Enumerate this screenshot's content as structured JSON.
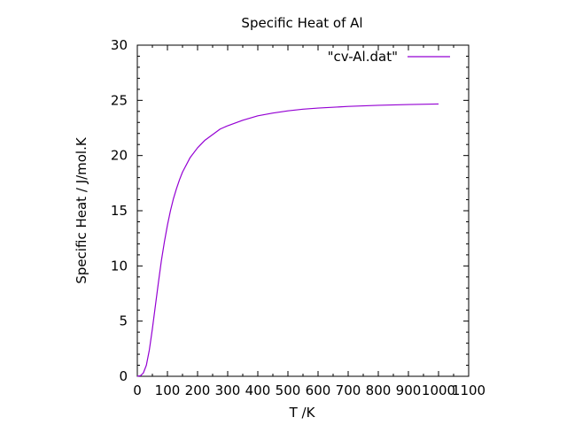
{
  "chart_data": {
    "type": "line",
    "title": "Specific Heat of Al",
    "xlabel": "T /K",
    "ylabel": "Specific Heat / J/mol.K",
    "xlim": [
      0,
      1100
    ],
    "ylim": [
      0,
      30
    ],
    "xticks": [
      "0",
      "100",
      "200",
      "300",
      "400",
      "500",
      "600",
      "700",
      "800",
      "900",
      "1000",
      "1100"
    ],
    "yticks": [
      "0",
      "5",
      "10",
      "15",
      "20",
      "25",
      "30"
    ],
    "legend_position": "top-right",
    "grid": false,
    "series": [
      {
        "name": "\"cv-Al.dat\"",
        "color": "#9400d3",
        "points": [
          [
            0,
            0.0
          ],
          [
            10,
            0.05
          ],
          [
            20,
            0.3
          ],
          [
            30,
            1.0
          ],
          [
            40,
            2.4
          ],
          [
            50,
            4.3
          ],
          [
            60,
            6.4
          ],
          [
            70,
            8.5
          ],
          [
            80,
            10.5
          ],
          [
            90,
            12.2
          ],
          [
            100,
            13.7
          ],
          [
            110,
            15.0
          ],
          [
            120,
            16.1
          ],
          [
            130,
            17.0
          ],
          [
            140,
            17.8
          ],
          [
            150,
            18.5
          ],
          [
            175,
            19.8
          ],
          [
            200,
            20.7
          ],
          [
            225,
            21.4
          ],
          [
            250,
            21.9
          ],
          [
            275,
            22.4
          ],
          [
            300,
            22.7
          ],
          [
            350,
            23.2
          ],
          [
            400,
            23.6
          ],
          [
            450,
            23.85
          ],
          [
            500,
            24.05
          ],
          [
            550,
            24.2
          ],
          [
            600,
            24.3
          ],
          [
            700,
            24.45
          ],
          [
            800,
            24.55
          ],
          [
            900,
            24.62
          ],
          [
            1000,
            24.67
          ]
        ]
      }
    ]
  }
}
